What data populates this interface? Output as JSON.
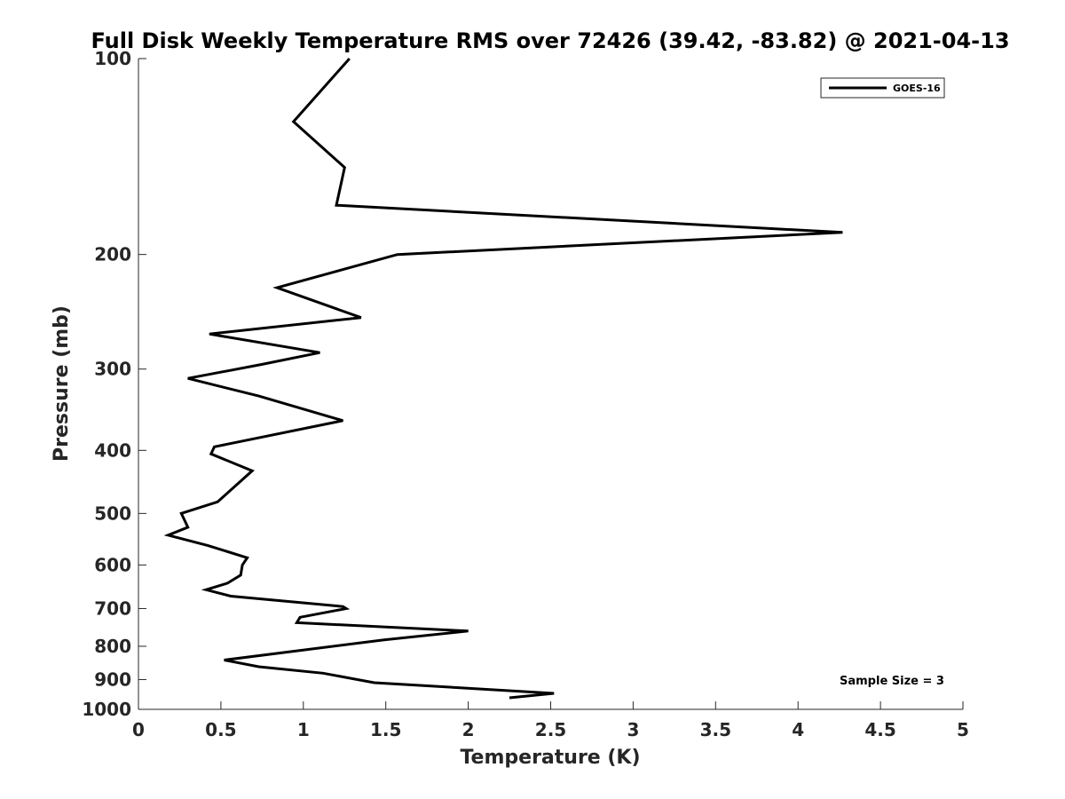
{
  "chart_data": {
    "type": "line",
    "title": "Full Disk Weekly Temperature RMS over 72426 (39.42, -83.82) @ 2021-04-13",
    "xlabel": "Temperature (K)",
    "ylabel": "Pressure (mb)",
    "xlim": [
      0,
      5
    ],
    "ylim": [
      100,
      1000
    ],
    "yscale": "log",
    "y_reversed": true,
    "x_ticks": [
      "0",
      "0.5",
      "1",
      "1.5",
      "2",
      "2.5",
      "3",
      "3.5",
      "4",
      "4.5",
      "5"
    ],
    "x_tick_values": [
      0,
      0.5,
      1,
      1.5,
      2,
      2.5,
      3,
      3.5,
      4,
      4.5,
      5
    ],
    "y_ticks": [
      "100",
      "200",
      "300",
      "400",
      "500",
      "600",
      "700",
      "800",
      "900",
      "1000"
    ],
    "y_tick_values": [
      100,
      200,
      300,
      400,
      500,
      600,
      700,
      800,
      900,
      1000
    ],
    "grid": false,
    "legend": {
      "position": "top-right",
      "entries": [
        "GOES-16"
      ]
    },
    "annotation": "Sample Size = 3",
    "line_color": "#000000",
    "series": [
      {
        "name": "GOES-16",
        "x": [
          1.28,
          0.94,
          1.25,
          1.2,
          4.27,
          1.57,
          0.84,
          1.35,
          0.43,
          1.1,
          0.75,
          0.3,
          0.73,
          1.24,
          0.46,
          0.44,
          0.69,
          0.48,
          0.26,
          0.3,
          0.18,
          0.42,
          0.66,
          0.63,
          0.62,
          0.54,
          0.41,
          0.56,
          1.24,
          1.26,
          0.98,
          0.96,
          2.0,
          1.49,
          0.52,
          0.73,
          1.12,
          1.43,
          2.52,
          2.25
        ],
        "y": [
          100,
          125,
          147,
          168,
          185,
          200,
          225,
          250,
          265,
          283,
          295,
          310,
          330,
          360,
          395,
          405,
          430,
          480,
          500,
          525,
          540,
          560,
          585,
          600,
          622,
          640,
          655,
          670,
          695,
          700,
          722,
          736,
          758,
          782,
          840,
          860,
          880,
          910,
          945,
          960
        ]
      }
    ]
  }
}
